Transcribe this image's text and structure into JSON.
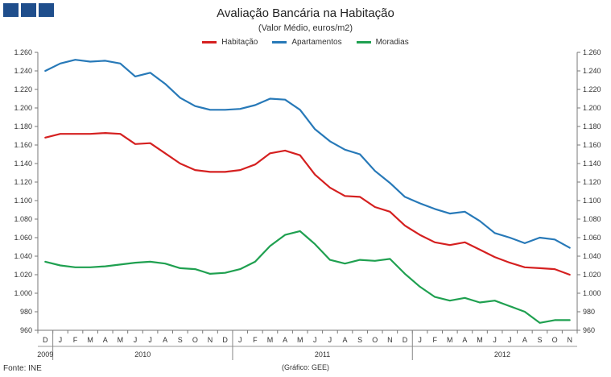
{
  "header": {
    "logo_name": "gee-logo"
  },
  "chart_data": {
    "type": "line",
    "title": "Avaliação Bancária na Habitação",
    "subtitle": "(Valor Médio, euros/m2)",
    "xlabel": "",
    "ylabel": "",
    "ylim": [
      960,
      1260
    ],
    "yticks": [
      960,
      980,
      "1.000",
      "1.020",
      "1.040",
      "1.060",
      "1.080",
      "1.100",
      "1.120",
      "1.140",
      "1.160",
      "1.180",
      "1.200",
      "1.220",
      "1.240",
      "1.260"
    ],
    "categories": [
      "D",
      "J",
      "F",
      "M",
      "A",
      "M",
      "J",
      "J",
      "A",
      "S",
      "O",
      "N",
      "D",
      "J",
      "F",
      "M",
      "A",
      "M",
      "J",
      "J",
      "A",
      "S",
      "O",
      "N",
      "D",
      "J",
      "F",
      "M",
      "A",
      "M",
      "J",
      "J",
      "A",
      "S",
      "O",
      "N"
    ],
    "year_labels": [
      {
        "label": "2009",
        "index": 0
      },
      {
        "label": "2010",
        "index": 6.5
      },
      {
        "label": "2011",
        "index": 18.5
      },
      {
        "label": "2012",
        "index": 30.5
      }
    ],
    "year_boundaries": [
      1,
      13,
      25
    ],
    "series": [
      {
        "name": "Habitação",
        "color": "#d52020",
        "values": [
          1168,
          1172,
          1172,
          1172,
          1173,
          1172,
          1161,
          1162,
          1151,
          1140,
          1133,
          1131,
          1131,
          1133,
          1139,
          1151,
          1154,
          1149,
          1128,
          1114,
          1105,
          1104,
          1093,
          1088,
          1073,
          1063,
          1055,
          1052,
          1055,
          1047,
          1039,
          1033,
          1028,
          1027,
          1026,
          1020
        ]
      },
      {
        "name": "Apartamentos",
        "color": "#2779b8",
        "values": [
          1240,
          1248,
          1252,
          1250,
          1251,
          1248,
          1234,
          1238,
          1226,
          1211,
          1202,
          1198,
          1198,
          1199,
          1203,
          1210,
          1209,
          1198,
          1177,
          1164,
          1155,
          1150,
          1132,
          1119,
          1104,
          1097,
          1091,
          1086,
          1088,
          1078,
          1065,
          1060,
          1054,
          1060,
          1058,
          1049
        ]
      },
      {
        "name": "Moradias",
        "color": "#1fa050",
        "values": [
          1034,
          1030,
          1028,
          1028,
          1029,
          1031,
          1033,
          1034,
          1032,
          1027,
          1026,
          1021,
          1022,
          1026,
          1034,
          1051,
          1063,
          1067,
          1053,
          1036,
          1032,
          1036,
          1035,
          1037,
          1021,
          1007,
          996,
          992,
          995,
          990,
          992,
          986,
          980,
          968,
          971,
          971
        ]
      }
    ]
  },
  "footer": {
    "source": "Fonte: INE",
    "credit": "(Gráfico: GEE)"
  }
}
